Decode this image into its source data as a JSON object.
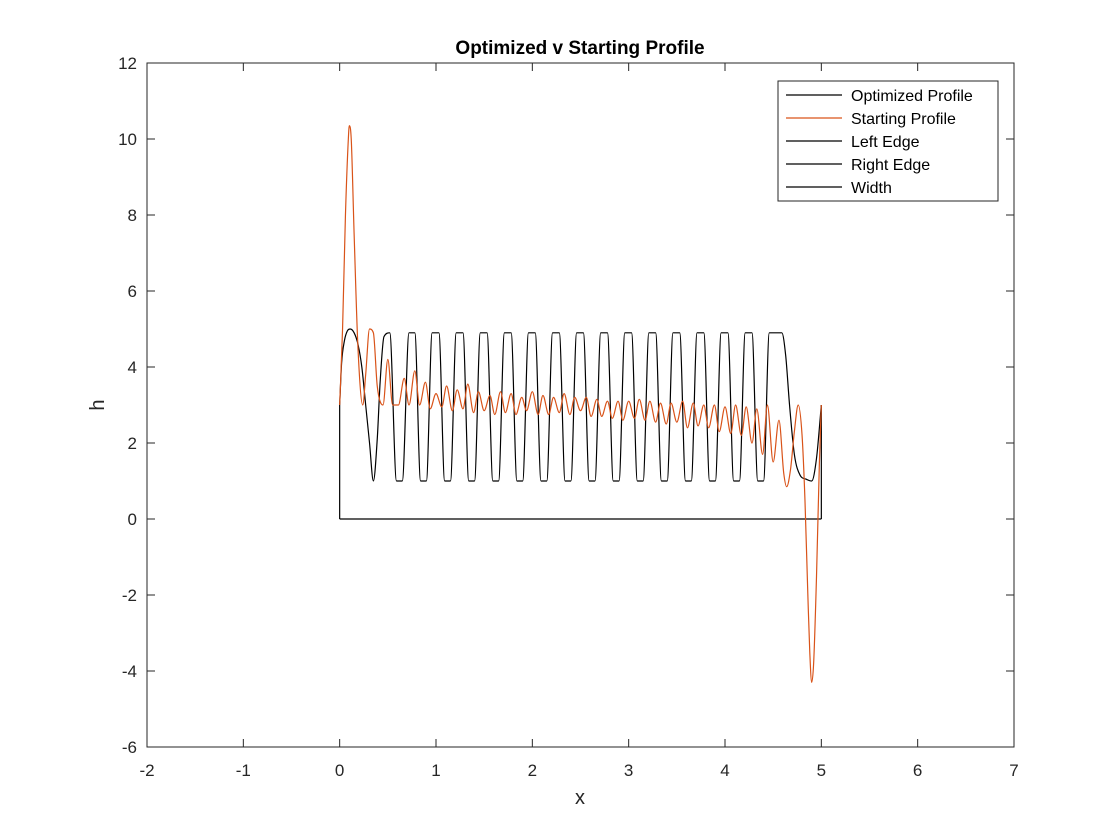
{
  "chart_data": {
    "type": "line",
    "title": "Optimized v Starting Profile",
    "xlabel": "x",
    "ylabel": "h",
    "xlim": [
      -2,
      7
    ],
    "ylim": [
      -6,
      12
    ],
    "xticks": [
      -2,
      -1,
      0,
      1,
      2,
      3,
      4,
      5,
      6,
      7
    ],
    "yticks": [
      -6,
      -4,
      -2,
      0,
      2,
      4,
      6,
      8,
      10,
      12
    ],
    "xtick_labels": [
      "-2",
      "-1",
      "0",
      "1",
      "2",
      "3",
      "4",
      "5",
      "6",
      "7"
    ],
    "ytick_labels": [
      "-6",
      "-4",
      "-2",
      "0",
      "2",
      "4",
      "6",
      "8",
      "10",
      "12"
    ],
    "grid": false,
    "legend_position": "top-right",
    "series": [
      {
        "name": "Optimized Profile",
        "color": "#000000",
        "x": [
          0.0,
          0.02,
          0.05,
          0.08,
          0.11,
          0.15,
          0.19,
          0.23,
          0.27,
          0.31,
          0.35,
          0.39,
          0.42,
          0.46,
          0.52,
          0.59,
          0.65,
          0.72,
          0.78,
          0.84,
          0.9,
          0.96,
          1.03,
          1.09,
          1.15,
          1.21,
          1.28,
          1.34,
          1.4,
          1.46,
          1.53,
          1.59,
          1.65,
          1.71,
          1.78,
          1.84,
          1.9,
          1.96,
          2.03,
          2.09,
          2.15,
          2.21,
          2.28,
          2.34,
          2.4,
          2.46,
          2.53,
          2.59,
          2.65,
          2.71,
          2.78,
          2.84,
          2.9,
          2.96,
          3.03,
          3.09,
          3.15,
          3.21,
          3.28,
          3.34,
          3.4,
          3.46,
          3.53,
          3.59,
          3.65,
          3.71,
          3.78,
          3.84,
          3.9,
          3.96,
          4.03,
          4.09,
          4.15,
          4.21,
          4.28,
          4.34,
          4.4,
          4.46,
          4.53,
          4.59,
          4.63,
          4.67,
          4.72,
          4.78,
          4.84,
          4.9,
          4.95,
          5.0
        ],
        "y": [
          3.0,
          4.1,
          4.7,
          4.95,
          5.0,
          4.9,
          4.6,
          4.0,
          3.0,
          2.0,
          1.0,
          2.1,
          3.6,
          4.8,
          4.9,
          1.0,
          1.0,
          4.9,
          4.9,
          1.0,
          1.0,
          4.9,
          4.9,
          1.0,
          1.0,
          4.9,
          4.9,
          1.0,
          1.0,
          4.9,
          4.9,
          1.0,
          1.0,
          4.9,
          4.9,
          1.0,
          1.0,
          4.9,
          4.9,
          1.0,
          1.0,
          4.9,
          4.9,
          1.0,
          1.0,
          4.9,
          4.9,
          1.0,
          1.0,
          4.9,
          4.9,
          1.0,
          1.0,
          4.9,
          4.9,
          1.0,
          1.0,
          4.9,
          4.9,
          1.0,
          1.0,
          4.9,
          4.9,
          1.0,
          1.0,
          4.9,
          4.9,
          1.0,
          1.0,
          4.9,
          4.9,
          1.0,
          1.0,
          4.9,
          4.9,
          1.0,
          1.0,
          4.9,
          4.9,
          4.9,
          4.3,
          3.0,
          1.7,
          1.15,
          1.05,
          1.0,
          1.6,
          3.0
        ]
      },
      {
        "name": "Starting Profile",
        "color": "#D95319",
        "x": [
          0.0,
          0.03,
          0.06,
          0.09,
          0.1,
          0.12,
          0.15,
          0.19,
          0.24,
          0.27,
          0.31,
          0.35,
          0.39,
          0.45,
          0.5,
          0.55,
          0.61,
          0.67,
          0.72,
          0.78,
          0.83,
          0.89,
          0.94,
          1.0,
          1.06,
          1.11,
          1.17,
          1.22,
          1.28,
          1.33,
          1.39,
          1.44,
          1.5,
          1.56,
          1.61,
          1.67,
          1.72,
          1.78,
          1.83,
          1.89,
          1.94,
          2.0,
          2.06,
          2.11,
          2.17,
          2.22,
          2.28,
          2.33,
          2.39,
          2.44,
          2.5,
          2.56,
          2.61,
          2.67,
          2.72,
          2.78,
          2.83,
          2.89,
          2.94,
          3.0,
          3.06,
          3.11,
          3.17,
          3.22,
          3.28,
          3.33,
          3.39,
          3.44,
          3.5,
          3.56,
          3.61,
          3.67,
          3.72,
          3.78,
          3.83,
          3.89,
          3.94,
          4.0,
          4.06,
          4.11,
          4.17,
          4.22,
          4.28,
          4.33,
          4.39,
          4.44,
          4.5,
          4.56,
          4.61,
          4.64,
          4.68,
          4.72,
          4.76,
          4.8,
          4.83,
          4.86,
          4.88,
          4.9,
          4.92,
          4.95,
          4.98,
          5.0
        ],
        "y": [
          3.0,
          5.0,
          8.0,
          10.0,
          10.35,
          10.0,
          7.5,
          4.5,
          3.0,
          3.8,
          5.0,
          4.9,
          3.5,
          3.0,
          4.2,
          3.0,
          3.0,
          3.7,
          3.0,
          3.9,
          3.0,
          3.6,
          2.9,
          3.3,
          2.95,
          3.5,
          2.85,
          3.4,
          2.9,
          3.55,
          2.8,
          3.35,
          2.85,
          3.25,
          2.75,
          3.35,
          2.8,
          3.3,
          2.75,
          3.2,
          2.85,
          3.35,
          2.75,
          3.25,
          2.75,
          3.2,
          2.8,
          3.3,
          2.75,
          3.2,
          2.85,
          3.2,
          2.7,
          3.15,
          2.7,
          3.1,
          2.65,
          3.1,
          2.6,
          3.1,
          2.65,
          3.15,
          2.6,
          3.1,
          2.55,
          3.05,
          2.5,
          3.05,
          2.55,
          3.1,
          2.4,
          3.05,
          2.45,
          3.0,
          2.4,
          3.0,
          2.3,
          2.95,
          2.25,
          3.0,
          2.2,
          2.95,
          2.0,
          2.9,
          1.7,
          3.0,
          1.5,
          2.6,
          1.2,
          0.85,
          1.3,
          2.3,
          3.0,
          2.2,
          0.5,
          -2.0,
          -3.5,
          -4.3,
          -3.8,
          -1.5,
          1.5,
          3.0
        ]
      },
      {
        "name": "Left Edge",
        "color": "#000000",
        "x": [
          0,
          0
        ],
        "y": [
          0,
          3
        ]
      },
      {
        "name": "Right Edge",
        "color": "#000000",
        "x": [
          5,
          5
        ],
        "y": [
          0,
          3
        ]
      },
      {
        "name": "Width",
        "color": "#000000",
        "x": [
          0,
          5
        ],
        "y": [
          0,
          0
        ]
      }
    ]
  }
}
